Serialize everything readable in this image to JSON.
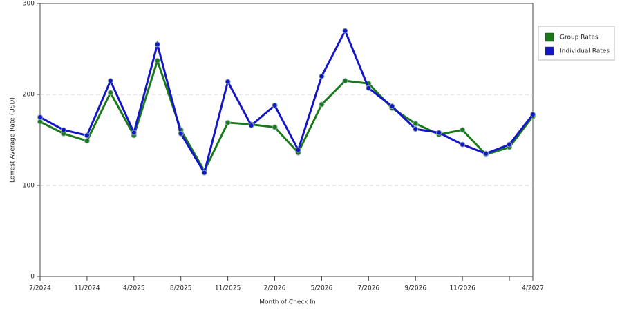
{
  "chart_data": {
    "type": "line",
    "x_label": "Month of Check In",
    "y_label": "Lowest Average Rate (USD)",
    "categories": [
      "7/2024",
      null,
      "11/2024",
      null,
      "4/2025",
      null,
      "8/2025",
      null,
      "11/2025",
      null,
      "2/2026",
      null,
      "5/2026",
      null,
      "7/2026",
      null,
      "9/2026",
      null,
      "11/2026",
      null,
      null,
      "4/2027"
    ],
    "series": [
      {
        "name": "Group Rates",
        "color": "#1a7a1a",
        "values": [
          170,
          157,
          149,
          202,
          155,
          237,
          161,
          116,
          169,
          167,
          164,
          136,
          189,
          215,
          212,
          185,
          168,
          156,
          161,
          134,
          142,
          176
        ]
      },
      {
        "name": "Individual Rates",
        "color": "#1515c8",
        "values": [
          175,
          161,
          155,
          215,
          158,
          255,
          157,
          114,
          214,
          166,
          188,
          139,
          220,
          270,
          207,
          187,
          162,
          158,
          145,
          135,
          145,
          178
        ]
      }
    ],
    "ylim": [
      0,
      300
    ],
    "yticks": [
      0,
      100,
      200,
      300
    ],
    "grid": true,
    "legend": "right"
  }
}
